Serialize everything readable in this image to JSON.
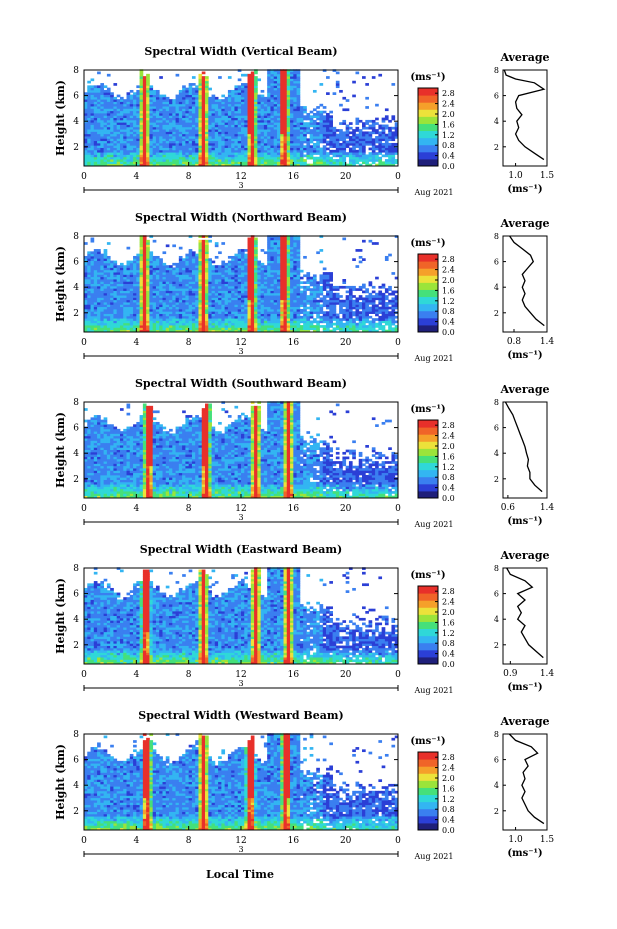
{
  "chart_data": {
    "type": "heatmap",
    "time_label": "Local Time",
    "y_label": "Height (km)",
    "colorbar_unit": "(ms⁻¹)",
    "avg_title": "Average",
    "avg_xlabel": "(ms⁻¹)",
    "date_label": "Aug 2021",
    "date_marker": "3",
    "x_ticks": [
      "0",
      "4",
      "8",
      "12",
      "16",
      "20",
      "0"
    ],
    "x_range_hours": [
      0,
      24
    ],
    "y_ticks": [
      "2",
      "4",
      "6",
      "8"
    ],
    "y_range_km": [
      0.5,
      8.0
    ],
    "colorbar_ticks": [
      "0.0",
      "0.4",
      "0.8",
      "1.2",
      "1.6",
      "2.0",
      "2.4",
      "2.8"
    ],
    "colorbar_range": [
      0.0,
      3.0
    ],
    "colors": [
      "#1f1f7a",
      "#2b3fd6",
      "#3a7ff0",
      "#33b5f2",
      "#2fd8d8",
      "#45e07a",
      "#9be43a",
      "#ece23a",
      "#f5a02a",
      "#f06428",
      "#e8302a"
    ],
    "panels": [
      {
        "title": "Spectral Width (Vertical Beam)",
        "spikes": [
          4.5,
          9.0,
          12.7,
          15.2
        ],
        "avg_ticks": [
          "1.0",
          "1.5"
        ],
        "avg_range": [
          0.8,
          1.5
        ],
        "avg_profile": [
          {
            "h": 1.0,
            "v": 1.45
          },
          {
            "h": 1.5,
            "v": 1.3
          },
          {
            "h": 2.0,
            "v": 1.15
          },
          {
            "h": 2.5,
            "v": 1.05
          },
          {
            "h": 3.0,
            "v": 1.0
          },
          {
            "h": 3.5,
            "v": 1.05
          },
          {
            "h": 4.0,
            "v": 1.02
          },
          {
            "h": 4.5,
            "v": 1.1
          },
          {
            "h": 5.0,
            "v": 1.02
          },
          {
            "h": 5.5,
            "v": 1.0
          },
          {
            "h": 6.0,
            "v": 1.05
          },
          {
            "h": 6.5,
            "v": 1.45
          },
          {
            "h": 7.0,
            "v": 1.3
          },
          {
            "h": 7.3,
            "v": 1.0
          },
          {
            "h": 7.6,
            "v": 0.85
          },
          {
            "h": 8.0,
            "v": 0.82
          }
        ]
      },
      {
        "title": "Spectral Width (Northward Beam)",
        "spikes": [
          4.5,
          9.0,
          12.7,
          15.2
        ],
        "avg_ticks": [
          "0.8",
          "1.4"
        ],
        "avg_range": [
          0.6,
          1.4
        ],
        "avg_profile": [
          {
            "h": 1.0,
            "v": 1.35
          },
          {
            "h": 1.5,
            "v": 1.2
          },
          {
            "h": 2.0,
            "v": 1.1
          },
          {
            "h": 2.5,
            "v": 1.0
          },
          {
            "h": 3.0,
            "v": 0.95
          },
          {
            "h": 3.5,
            "v": 1.0
          },
          {
            "h": 4.0,
            "v": 0.95
          },
          {
            "h": 4.5,
            "v": 1.0
          },
          {
            "h": 5.0,
            "v": 0.95
          },
          {
            "h": 5.5,
            "v": 1.05
          },
          {
            "h": 6.0,
            "v": 1.15
          },
          {
            "h": 6.5,
            "v": 1.1
          },
          {
            "h": 7.0,
            "v": 0.95
          },
          {
            "h": 7.5,
            "v": 0.8
          },
          {
            "h": 8.0,
            "v": 0.72
          }
        ]
      },
      {
        "title": "Spectral Width (Southward Beam)",
        "spikes": [
          4.8,
          9.2,
          13.0,
          15.5
        ],
        "avg_ticks": [
          "0.6",
          "1.4"
        ],
        "avg_range": [
          0.5,
          1.4
        ],
        "avg_profile": [
          {
            "h": 1.0,
            "v": 1.3
          },
          {
            "h": 1.5,
            "v": 1.15
          },
          {
            "h": 2.0,
            "v": 1.05
          },
          {
            "h": 2.5,
            "v": 1.05
          },
          {
            "h": 3.0,
            "v": 1.0
          },
          {
            "h": 3.5,
            "v": 1.02
          },
          {
            "h": 4.0,
            "v": 0.98
          },
          {
            "h": 4.5,
            "v": 0.95
          },
          {
            "h": 5.0,
            "v": 0.9
          },
          {
            "h": 5.5,
            "v": 0.85
          },
          {
            "h": 6.0,
            "v": 0.8
          },
          {
            "h": 6.5,
            "v": 0.75
          },
          {
            "h": 7.0,
            "v": 0.7
          },
          {
            "h": 7.5,
            "v": 0.62
          },
          {
            "h": 8.0,
            "v": 0.55
          }
        ]
      },
      {
        "title": "Spectral Width (Eastward Beam)",
        "spikes": [
          4.6,
          9.0,
          13.0,
          15.5
        ],
        "avg_ticks": [
          "0.9",
          "1.4"
        ],
        "avg_range": [
          0.8,
          1.4
        ],
        "avg_profile": [
          {
            "h": 1.0,
            "v": 1.35
          },
          {
            "h": 1.5,
            "v": 1.25
          },
          {
            "h": 2.0,
            "v": 1.15
          },
          {
            "h": 2.5,
            "v": 1.1
          },
          {
            "h": 3.0,
            "v": 1.05
          },
          {
            "h": 3.5,
            "v": 1.1
          },
          {
            "h": 4.0,
            "v": 1.0
          },
          {
            "h": 4.5,
            "v": 1.05
          },
          {
            "h": 5.0,
            "v": 1.0
          },
          {
            "h": 5.5,
            "v": 1.1
          },
          {
            "h": 6.0,
            "v": 1.0
          },
          {
            "h": 6.5,
            "v": 1.2
          },
          {
            "h": 7.0,
            "v": 1.1
          },
          {
            "h": 7.5,
            "v": 0.9
          },
          {
            "h": 8.0,
            "v": 0.85
          }
        ]
      },
      {
        "title": "Spectral Width (Westward Beam)",
        "spikes": [
          4.7,
          9.0,
          12.6,
          15.3
        ],
        "avg_ticks": [
          "1.0",
          "1.5"
        ],
        "avg_range": [
          0.8,
          1.5
        ],
        "avg_profile": [
          {
            "h": 1.0,
            "v": 1.45
          },
          {
            "h": 1.5,
            "v": 1.3
          },
          {
            "h": 2.0,
            "v": 1.2
          },
          {
            "h": 2.5,
            "v": 1.15
          },
          {
            "h": 3.0,
            "v": 1.1
          },
          {
            "h": 3.5,
            "v": 1.15
          },
          {
            "h": 4.0,
            "v": 1.1
          },
          {
            "h": 4.5,
            "v": 1.15
          },
          {
            "h": 5.0,
            "v": 1.12
          },
          {
            "h": 5.5,
            "v": 1.2
          },
          {
            "h": 6.0,
            "v": 1.15
          },
          {
            "h": 6.5,
            "v": 1.35
          },
          {
            "h": 7.0,
            "v": 1.25
          },
          {
            "h": 7.5,
            "v": 1.0
          },
          {
            "h": 8.0,
            "v": 0.9
          }
        ]
      }
    ]
  }
}
